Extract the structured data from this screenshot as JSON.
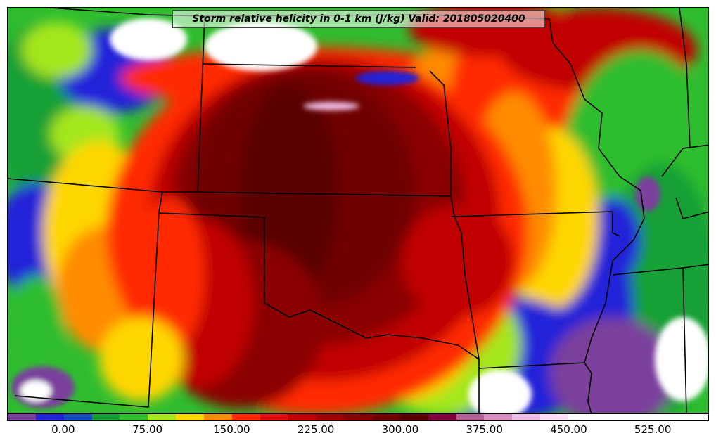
{
  "title": "Storm relative helicity in 0-1 km (J/kg) Valid: 201805020400",
  "colorbar": {
    "min": -50,
    "max": 575,
    "step": 25,
    "colors": [
      "#7a3f9b",
      "#2323d8",
      "#1450c0",
      "#16a034",
      "#2fbd2f",
      "#a4e61a",
      "#ffd700",
      "#ff8c00",
      "#ff2a00",
      "#e01010",
      "#c00000",
      "#a00000",
      "#8a0000",
      "#700000",
      "#5a0000",
      "#800040",
      "#b06090",
      "#d890c0",
      "#f0c0e8",
      "#ffe0f8",
      "#ffffff",
      "#ffffff",
      "#ffffff",
      "#ffffff",
      "#ffffff"
    ],
    "tick_labels": [
      {
        "label": "0.00",
        "value": 0
      },
      {
        "label": "75.00",
        "value": 75
      },
      {
        "label": "150.00",
        "value": 150
      },
      {
        "label": "225.00",
        "value": 225
      },
      {
        "label": "300.00",
        "value": 300
      },
      {
        "label": "375.00",
        "value": 375
      },
      {
        "label": "450.00",
        "value": 450
      },
      {
        "label": "525.00",
        "value": 525
      }
    ]
  }
}
